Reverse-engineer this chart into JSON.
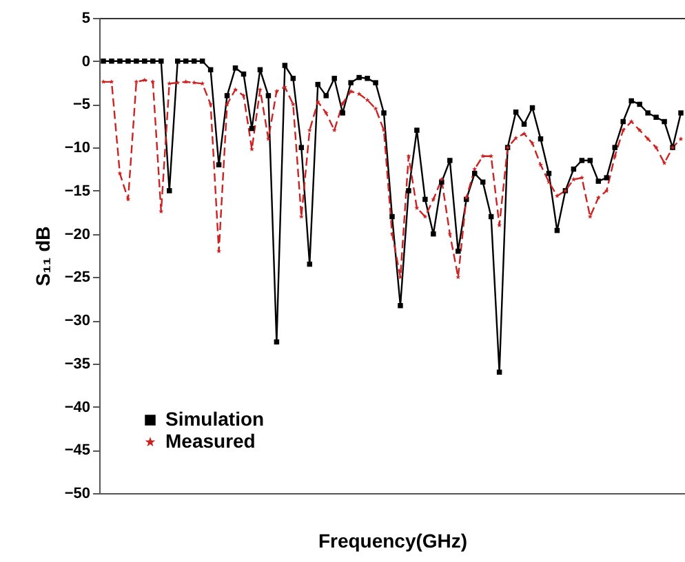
{
  "chart_data": {
    "type": "line",
    "xlabel": "Frequency(GHz)",
    "ylabel": "S₁₁ dB",
    "categories": [
      null,
      null,
      null,
      null,
      null,
      null,
      null,
      null,
      null,
      null,
      null,
      null,
      null,
      null,
      null,
      null,
      null,
      null,
      null,
      null,
      null,
      null,
      null,
      null,
      null,
      null,
      null,
      null,
      null,
      null,
      null,
      null,
      null,
      null,
      null,
      null,
      null,
      null,
      null,
      null,
      null,
      null,
      null,
      null,
      null,
      null,
      null,
      null,
      null,
      null,
      null,
      null,
      null,
      null,
      null,
      null,
      null,
      null,
      null,
      null,
      null,
      null,
      null,
      null,
      null,
      null,
      null,
      null,
      null,
      null,
      null
    ],
    "series": [
      {
        "name": "Simulation",
        "color": "#000000",
        "marker": "square",
        "line_style": "solid",
        "values": [
          0,
          0,
          0,
          0,
          0,
          0,
          0,
          0,
          -15,
          0,
          0,
          0,
          0,
          -1,
          -12,
          -4,
          -0.8,
          -1.5,
          -7.8,
          -1,
          -4,
          -32.5,
          -0.5,
          -2,
          -10,
          -23.5,
          -2.7,
          -4,
          -2,
          -6,
          -2.5,
          -1.9,
          -2,
          -2.5,
          -6,
          -18,
          -28.3,
          -15,
          -8,
          -16,
          -20,
          -14,
          -11.5,
          -22,
          -16,
          -13,
          -14,
          -18,
          -36,
          -10,
          -5.9,
          -7.3,
          -5.4,
          -9,
          -13,
          -19.6,
          -15,
          -12.5,
          -11.5,
          -11.5,
          -13.9,
          -13.5,
          -10,
          -7,
          -4.6,
          -5,
          -6,
          -6.5,
          -7,
          -10,
          -6
        ]
      },
      {
        "name": "Measured",
        "color": "#cc2222",
        "marker": "star",
        "line_style": "dashed",
        "values": [
          -2.4,
          -2.4,
          -13,
          -16,
          -2.4,
          -2.2,
          -2.4,
          -17.4,
          -2.6,
          -2.5,
          -2.4,
          -2.5,
          -2.6,
          -5,
          -22,
          -5,
          -3.3,
          -4,
          -10.2,
          -3.3,
          -9,
          -3.5,
          -3,
          -5,
          -18,
          -8,
          -4.7,
          -6,
          -8,
          -4.9,
          -3.5,
          -3.8,
          -4.5,
          -5.5,
          -8,
          -20,
          -25,
          -11,
          -17,
          -18,
          -16,
          -13.7,
          -20,
          -25,
          -15.8,
          -12.5,
          -11,
          -11,
          -19,
          -10,
          -8.9,
          -8.4,
          -9.5,
          -12,
          -14,
          -15.6,
          -15,
          -13.7,
          -13.5,
          -18,
          -15.8,
          -15,
          -11,
          -8,
          -7,
          -8,
          -9,
          -10,
          -11.8,
          -10,
          -9
        ]
      }
    ],
    "ylim": [
      -50,
      5
    ],
    "yticks": [
      5,
      0,
      -5,
      -10,
      -15,
      -20,
      -25,
      -30,
      -35,
      -40,
      -45,
      -50
    ],
    "tick_labels": "y",
    "legend": "bottom left"
  }
}
